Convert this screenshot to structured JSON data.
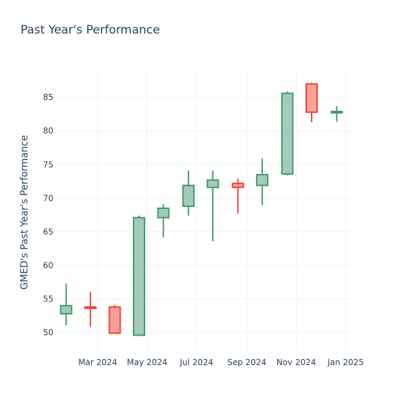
{
  "chart_data": {
    "type": "candlestick",
    "title": "Past Year's Performance",
    "xlabel": "",
    "ylabel": "GMED's Past Year's Performance",
    "xlim": [
      "2024-01-08",
      "2025-01-14"
    ],
    "ylim": [
      47.5,
      89.3
    ],
    "x_ticks": [
      {
        "date": "2024-03-01",
        "label": "Mar 2024"
      },
      {
        "date": "2024-05-01",
        "label": "May 2024"
      },
      {
        "date": "2024-07-01",
        "label": "Jul 2024"
      },
      {
        "date": "2024-09-01",
        "label": "Sep 2024"
      },
      {
        "date": "2024-11-01",
        "label": "Nov 2024"
      },
      {
        "date": "2025-01-01",
        "label": "Jan 2025"
      }
    ],
    "y_ticks": [
      50,
      55,
      60,
      65,
      70,
      75,
      80,
      85
    ],
    "grid": true,
    "legend": "none",
    "colors": {
      "increasing_line": "#3d9970",
      "increasing_fill": "#a3cbb7",
      "decreasing_line": "#ef4035",
      "decreasing_fill": "#f9a09a",
      "text": "#2a3f5f",
      "grid": "#eef0f4"
    },
    "candles": [
      {
        "date": "2024-01-22",
        "open": 52.8,
        "high": 57.3,
        "low": 51.1,
        "close": 54.0
      },
      {
        "date": "2024-02-21",
        "open": 53.8,
        "high": 56.0,
        "low": 50.9,
        "close": 53.6
      },
      {
        "date": "2024-03-22",
        "open": 53.8,
        "high": 54.1,
        "low": 49.8,
        "close": 49.9
      },
      {
        "date": "2024-04-21",
        "open": 49.6,
        "high": 67.4,
        "low": 49.5,
        "close": 67.1
      },
      {
        "date": "2024-05-21",
        "open": 67.1,
        "high": 69.1,
        "low": 64.2,
        "close": 68.5
      },
      {
        "date": "2024-06-21",
        "open": 68.8,
        "high": 74.1,
        "low": 67.4,
        "close": 71.9
      },
      {
        "date": "2024-07-21",
        "open": 71.6,
        "high": 74.1,
        "low": 63.6,
        "close": 72.7
      },
      {
        "date": "2024-08-21",
        "open": 72.2,
        "high": 72.9,
        "low": 67.7,
        "close": 71.6
      },
      {
        "date": "2024-09-20",
        "open": 71.9,
        "high": 75.9,
        "low": 69.0,
        "close": 73.5
      },
      {
        "date": "2024-10-21",
        "open": 73.6,
        "high": 85.9,
        "low": 73.4,
        "close": 85.6
      },
      {
        "date": "2024-11-20",
        "open": 87.0,
        "high": 87.2,
        "low": 81.3,
        "close": 82.8
      },
      {
        "date": "2024-12-21",
        "open": 82.7,
        "high": 83.7,
        "low": 81.4,
        "close": 82.9
      }
    ]
  }
}
